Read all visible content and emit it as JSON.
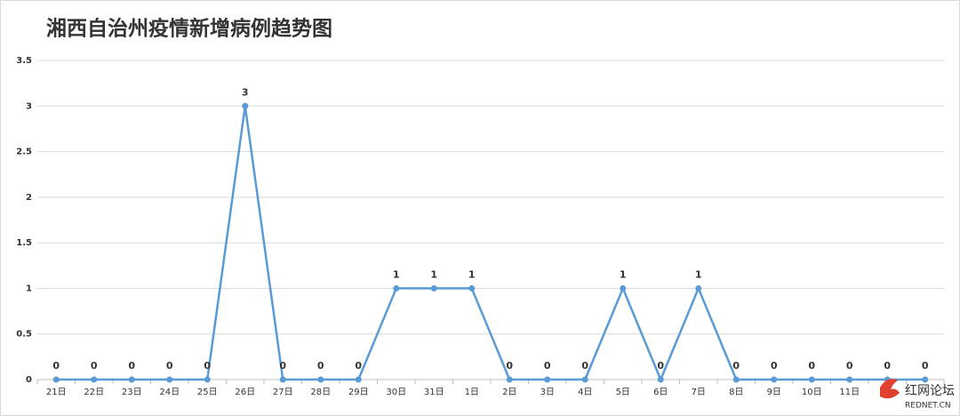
{
  "chart_data": {
    "type": "line",
    "title": "湘西自治州疫情新增病例趋势图",
    "categories": [
      "21日",
      "22日",
      "23日",
      "24日",
      "25日",
      "26日",
      "27日",
      "28日",
      "29日",
      "30日",
      "31日",
      "1日",
      "2日",
      "3日",
      "4日",
      "5日",
      "6日",
      "7日",
      "8日",
      "9日",
      "10日",
      "11日",
      null,
      null
    ],
    "series": [
      {
        "name": "新增病例",
        "color": "#5b9bd5",
        "values": [
          0,
          0,
          0,
          0,
          0,
          3,
          0,
          0,
          0,
          1,
          1,
          1,
          0,
          0,
          0,
          1,
          0,
          1,
          0,
          0,
          0,
          0,
          0,
          0
        ]
      }
    ],
    "ylim": [
      0,
      3.5
    ],
    "yticks": [
      0,
      0.5,
      1,
      1.5,
      2,
      2.5,
      3,
      3.5
    ],
    "grid": true,
    "legend": false
  },
  "watermark": {
    "name": "红网论坛",
    "domain": "REDNET.CN"
  }
}
